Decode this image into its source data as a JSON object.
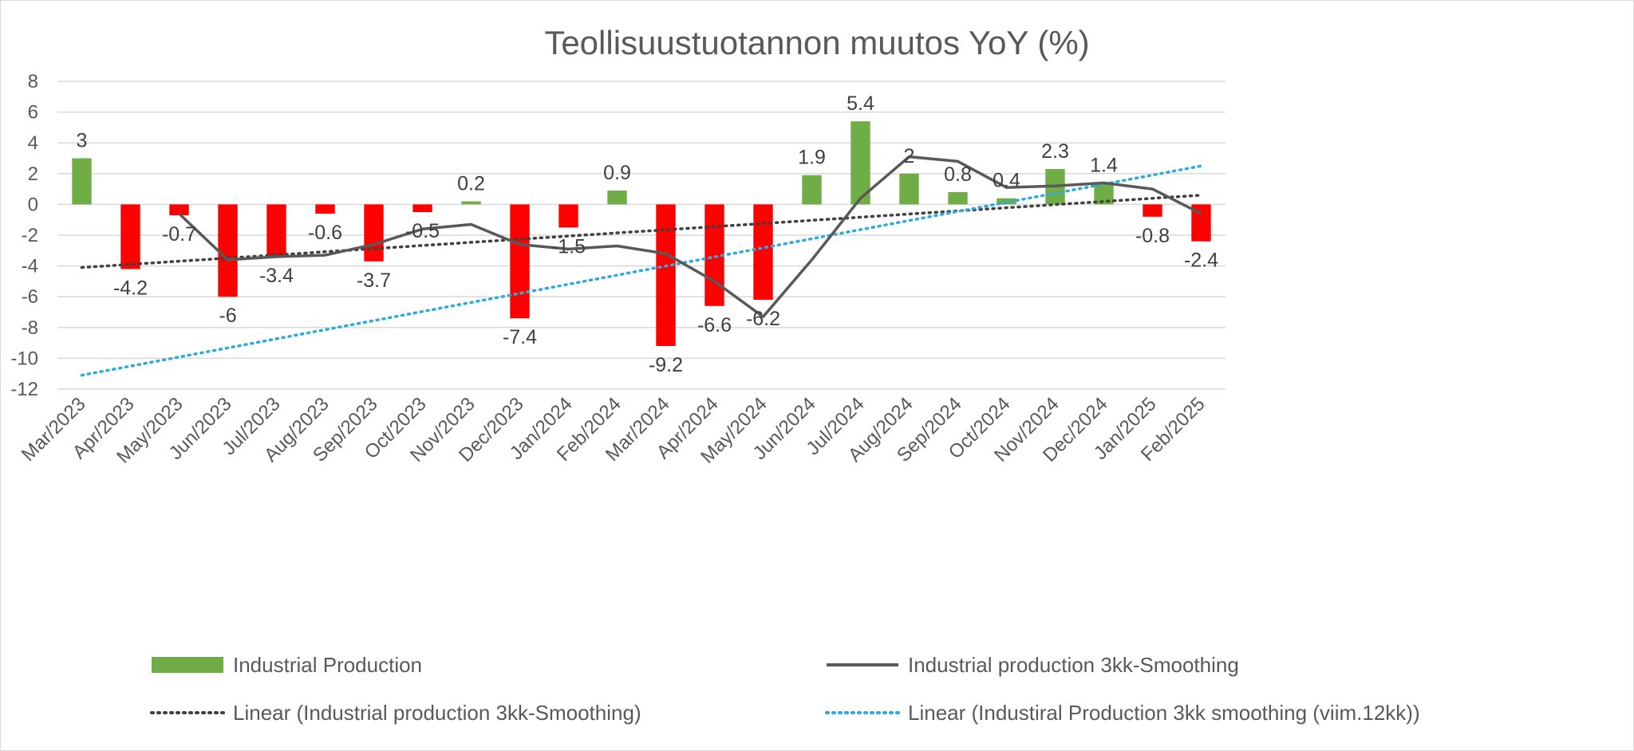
{
  "chart_data": {
    "type": "bar",
    "title": "Teollisuustuotannon muutos YoY (%)",
    "xlabel": "",
    "ylabel": "",
    "ylim": [
      -12,
      8
    ],
    "yticks": [
      8,
      6,
      4,
      2,
      0,
      -2,
      -4,
      -6,
      -8,
      -10,
      -12
    ],
    "grid": true,
    "legend_position": "bottom",
    "categories": [
      "Mar/2023",
      "Apr/2023",
      "May/2023",
      "Jun/2023",
      "Jul/2023",
      "Aug/2023",
      "Sep/2023",
      "Oct/2023",
      "Nov/2023",
      "Dec/2023",
      "Jan/2024",
      "Feb/2024",
      "Mar/2024",
      "Apr/2024",
      "May/2024",
      "Jun/2024",
      "Jul/2024",
      "Aug/2024",
      "Sep/2024",
      "Oct/2024",
      "Nov/2024",
      "Dec/2024",
      "Jan/2025",
      "Feb/2025"
    ],
    "series": [
      {
        "name": "Industrial Production",
        "type": "bar",
        "positive_color": "#70ad47",
        "negative_color": "#ff0000",
        "values": [
          3,
          -4.2,
          -0.7,
          -6,
          -3.4,
          -0.6,
          -3.7,
          -0.5,
          0.2,
          -7.4,
          -1.5,
          0.9,
          -9.2,
          -6.6,
          -6.2,
          1.9,
          5.4,
          2,
          0.8,
          0.4,
          2.3,
          1.4,
          -0.8,
          -2.4
        ],
        "labels": [
          "3",
          "-4.2",
          "-0.7",
          "-6",
          "-3.4",
          "-0.6",
          "-3.7",
          "-0.5",
          "0.2",
          "-7.4",
          "-1.5",
          "0.9",
          "-9.2",
          "-6.6",
          "-6.2",
          "1.9",
          "5.4",
          "2",
          "0.8",
          "0.4",
          "2.3",
          "1.4",
          "-0.8",
          "-2.4"
        ]
      },
      {
        "name": "Industrial production 3kk-Smoothing",
        "type": "line",
        "color": "#595959",
        "values": [
          null,
          null,
          -0.6,
          -3.6,
          -3.4,
          -3.3,
          -2.6,
          -1.6,
          -1.3,
          -2.6,
          -2.9,
          -2.7,
          -3.2,
          -5.0,
          -7.3,
          -3.6,
          0.4,
          3.1,
          2.8,
          1.1,
          1.2,
          1.4,
          1.0,
          -0.6
        ]
      },
      {
        "name": "Linear (Industrial production 3kk-Smoothing)",
        "type": "trendline",
        "style": "dotted",
        "color": "#404040",
        "x_range": [
          "Mar/2023",
          "Feb/2025"
        ],
        "y_range": [
          -4.1,
          0.6
        ]
      },
      {
        "name": "Linear (Industiral Production 3kk smoothing (viim.12kk))",
        "type": "trendline",
        "style": "dotted",
        "color": "#2eaadc",
        "x_range": [
          "Mar/2023",
          "Feb/2025"
        ],
        "y_range": [
          -11.1,
          2.5
        ]
      }
    ]
  }
}
